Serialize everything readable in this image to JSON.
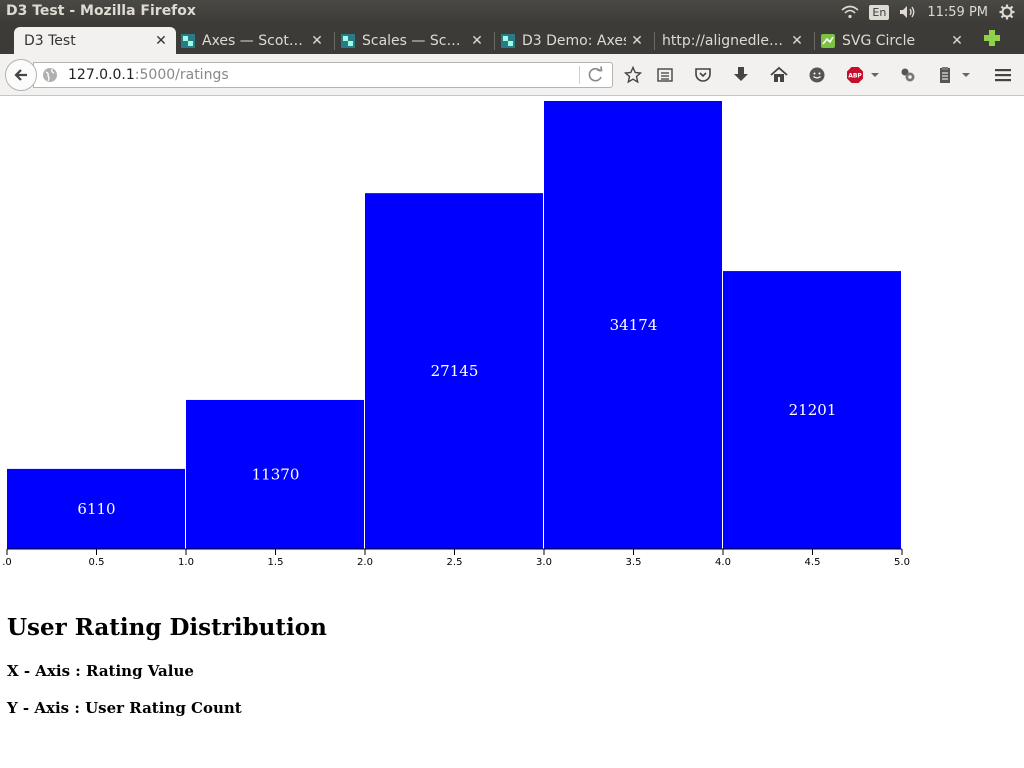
{
  "window": {
    "title": "D3 Test - Mozilla Firefox",
    "clock": "11:59 PM",
    "lang": "En"
  },
  "tabs": [
    {
      "label": "D3 Test",
      "active": true,
      "icon": "blank"
    },
    {
      "label": "Axes — Scot…",
      "active": false,
      "icon": "d3-icon"
    },
    {
      "label": "Scales — Sc…",
      "active": false,
      "icon": "d3-icon"
    },
    {
      "label": "D3 Demo: Axes",
      "active": false,
      "icon": "d3-icon"
    },
    {
      "label": "http://alignedle…",
      "active": false,
      "icon": "blank"
    },
    {
      "label": "SVG Circle",
      "active": false,
      "icon": "svg-icon"
    }
  ],
  "url": {
    "host": "127.0.0.1",
    "path": ":5000/ratings"
  },
  "page": {
    "title": "User Rating Distribution",
    "x_note": "X - Axis : Rating Value",
    "y_note": "Y - Axis : User Rating Count"
  },
  "chart_data": {
    "type": "bar",
    "bins": [
      [
        0,
        1
      ],
      [
        1,
        2
      ],
      [
        2,
        3
      ],
      [
        3,
        4
      ],
      [
        4,
        5
      ]
    ],
    "values": [
      6110,
      11370,
      27145,
      34174,
      21201
    ],
    "xlim": [
      0,
      5
    ],
    "ticks": [
      0,
      0.5,
      1.0,
      1.5,
      2.0,
      2.5,
      3.0,
      3.5,
      4.0,
      4.5,
      5.0
    ],
    "tick_labels": [
      ".0",
      "0.5",
      "1.0",
      "1.5",
      "2.0",
      "2.5",
      "3.0",
      "3.5",
      "4.0",
      "4.5",
      "5.0"
    ],
    "bar_color": "#0000ff",
    "label_color": "#ffffff"
  }
}
